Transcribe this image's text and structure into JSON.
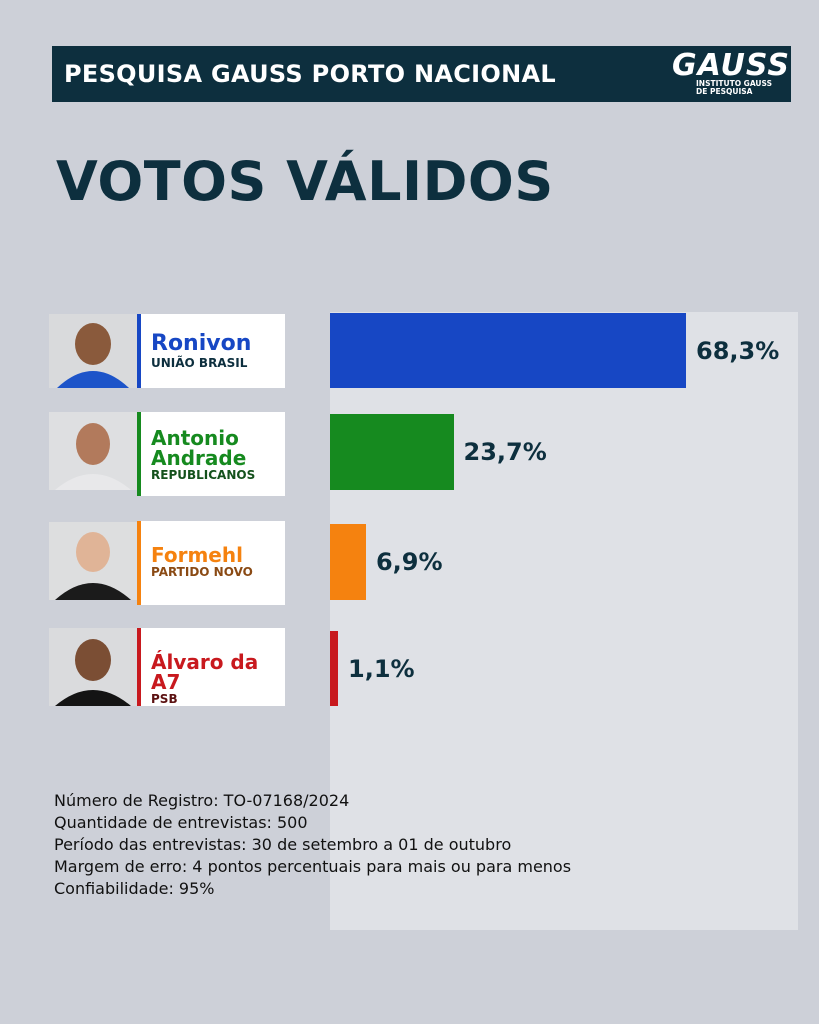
{
  "header": {
    "title": "PESQUISA GAUSS PORTO NACIONAL",
    "logo_word": "GAUSS",
    "logo_sub_line1": "INSTITUTO GAUSS",
    "logo_sub_line2": "DE PESQUISA"
  },
  "page_title": "VOTOS VÁLIDOS",
  "chart_data": {
    "type": "bar",
    "orientation": "horizontal",
    "title": "VOTOS VÁLIDOS",
    "unit": "%",
    "xlim": [
      0,
      100
    ],
    "grid": false,
    "legend": "none",
    "categories": [
      "Ronivon",
      "Antonio Andrade",
      "Formehl",
      "Álvaro da A7"
    ],
    "values": [
      68.3,
      23.7,
      6.9,
      1.1
    ],
    "value_labels": [
      "68,3%",
      "23,7%",
      "6,9%",
      "1,1%"
    ],
    "colors": [
      "#1747c4",
      "#168a1f",
      "#f5820f",
      "#c8191e"
    ]
  },
  "candidates": [
    {
      "name_line1": "Ronivon",
      "name_line2": "",
      "party": "UNIÃO BRASIL",
      "color": "#1747c4",
      "name_color": "#1747c4",
      "party_color": "#0d2f3e"
    },
    {
      "name_line1": "Antonio",
      "name_line2": "Andrade",
      "party": "REPUBLICANOS",
      "color": "#168a1f",
      "name_color": "#168a1f",
      "party_color": "#14511c"
    },
    {
      "name_line1": "Formehl",
      "name_line2": "",
      "party": "PARTIDO NOVO",
      "color": "#f5820f",
      "name_color": "#f5820f",
      "party_color": "#8a4a14"
    },
    {
      "name_line1": "Álvaro da A7",
      "name_line2": "",
      "party": "PSB",
      "color": "#c8191e",
      "name_color": "#c8191e",
      "party_color": "#5b1010"
    }
  ],
  "footer": {
    "line1": "Número de Registro: TO-07168/2024",
    "line2": "Quantidade de entrevistas: 500",
    "line3": "Período das entrevistas: 30 de setembro a 01 de outubro",
    "line4": "Margem de erro: 4 pontos percentuais para mais ou para menos",
    "line5": "Confiabilidade: 95%"
  }
}
